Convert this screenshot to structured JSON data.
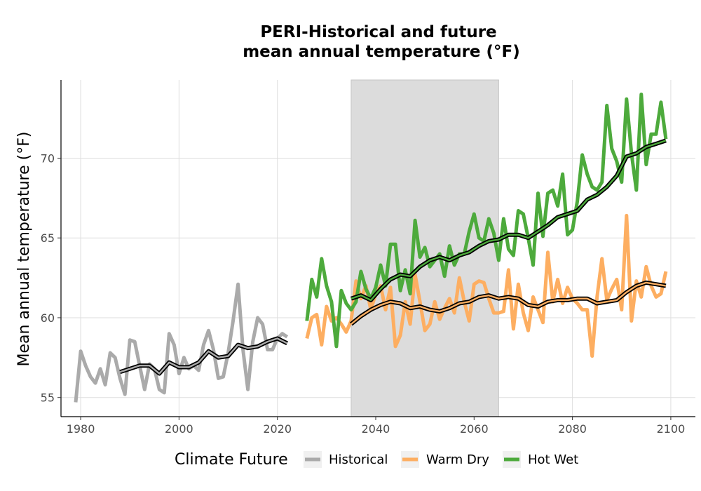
{
  "chart_data": {
    "type": "line",
    "title_lines": [
      "PERI-Historical and future",
      "mean annual temperature (°F)"
    ],
    "xlabel": "",
    "ylabel": "Mean annual temperature (°F)",
    "xlim": [
      1976,
      2105
    ],
    "ylim": [
      53.8,
      74.9
    ],
    "xticks": [
      1980,
      2000,
      2020,
      2040,
      2060,
      2080,
      2100
    ],
    "yticks": [
      55,
      60,
      65,
      70
    ],
    "grid": true,
    "shaded_period": [
      2035,
      2065
    ],
    "legend": {
      "title": "Climate Future",
      "position": "bottom",
      "entries": [
        "Historical",
        "Warm Dry",
        "Hot Wet"
      ]
    },
    "series": [
      {
        "name": "Historical",
        "color": "#aaaaaa",
        "x": [
          1979,
          1980,
          1981,
          1982,
          1983,
          1984,
          1985,
          1986,
          1987,
          1988,
          1989,
          1990,
          1991,
          1992,
          1993,
          1994,
          1995,
          1996,
          1997,
          1998,
          1999,
          2000,
          2001,
          2002,
          2003,
          2004,
          2005,
          2006,
          2007,
          2008,
          2009,
          2010,
          2011,
          2012,
          2013,
          2014,
          2015,
          2016,
          2017,
          2018,
          2019,
          2020,
          2021,
          2022
        ],
        "values": [
          54.7,
          57.9,
          57.0,
          56.3,
          55.9,
          56.8,
          55.8,
          57.8,
          57.5,
          56.2,
          55.2,
          58.6,
          58.5,
          57.0,
          55.5,
          57.1,
          56.8,
          55.5,
          55.3,
          59.0,
          58.3,
          56.5,
          57.5,
          56.8,
          57.0,
          56.7,
          58.3,
          59.2,
          58.0,
          56.2,
          56.3,
          57.8,
          59.8,
          62.1,
          58.0,
          55.5,
          58.5,
          60.0,
          59.6,
          58.0,
          58.0,
          58.7,
          59.0,
          58.8
        ]
      },
      {
        "name": "Warm Dry",
        "color": "#fdae61",
        "x": [
          2026,
          2027,
          2028,
          2029,
          2030,
          2031,
          2032,
          2033,
          2034,
          2035,
          2036,
          2037,
          2038,
          2039,
          2040,
          2041,
          2042,
          2043,
          2044,
          2045,
          2046,
          2047,
          2048,
          2049,
          2050,
          2051,
          2052,
          2053,
          2054,
          2055,
          2056,
          2057,
          2058,
          2059,
          2060,
          2061,
          2062,
          2063,
          2064,
          2065,
          2066,
          2067,
          2068,
          2069,
          2070,
          2071,
          2072,
          2073,
          2074,
          2075,
          2076,
          2077,
          2078,
          2079,
          2080,
          2081,
          2082,
          2083,
          2084,
          2085,
          2086,
          2087,
          2088,
          2089,
          2090,
          2091,
          2092,
          2093,
          2094,
          2095,
          2096,
          2097,
          2098,
          2099
        ],
        "values": [
          58.7,
          60.0,
          60.2,
          58.3,
          60.7,
          59.8,
          60.0,
          59.6,
          59.1,
          59.8,
          62.3,
          61.2,
          62.0,
          60.5,
          61.5,
          62.0,
          60.5,
          61.9,
          58.2,
          58.9,
          61.0,
          59.6,
          62.7,
          61.0,
          59.2,
          59.6,
          61.0,
          59.9,
          60.6,
          61.2,
          60.3,
          62.5,
          61.0,
          59.8,
          62.1,
          62.3,
          62.2,
          61.2,
          60.3,
          60.3,
          60.4,
          63.0,
          59.3,
          62.1,
          60.3,
          59.2,
          61.3,
          60.5,
          59.7,
          64.1,
          61.0,
          62.4,
          60.9,
          61.9,
          61.2,
          60.9,
          60.5,
          60.5,
          57.6,
          61.3,
          63.7,
          61.1,
          61.8,
          62.4,
          60.5,
          66.4,
          59.8,
          62.3,
          61.3,
          63.2,
          62.0,
          61.3,
          61.5,
          62.9
        ]
      },
      {
        "name": "Hot Wet",
        "color": "#4daa3c",
        "x": [
          2026,
          2027,
          2028,
          2029,
          2030,
          2031,
          2032,
          2033,
          2034,
          2035,
          2036,
          2037,
          2038,
          2039,
          2040,
          2041,
          2042,
          2043,
          2044,
          2045,
          2046,
          2047,
          2048,
          2049,
          2050,
          2051,
          2052,
          2053,
          2054,
          2055,
          2056,
          2057,
          2058,
          2059,
          2060,
          2061,
          2062,
          2063,
          2064,
          2065,
          2066,
          2067,
          2068,
          2069,
          2070,
          2071,
          2072,
          2073,
          2074,
          2075,
          2076,
          2077,
          2078,
          2079,
          2080,
          2081,
          2082,
          2083,
          2084,
          2085,
          2086,
          2087,
          2088,
          2089,
          2090,
          2091,
          2092,
          2093,
          2094,
          2095,
          2096,
          2097,
          2098,
          2099
        ],
        "values": [
          59.8,
          62.4,
          61.3,
          63.7,
          62.0,
          61.0,
          58.2,
          61.7,
          60.9,
          60.5,
          61.0,
          62.9,
          61.8,
          61.2,
          61.9,
          63.3,
          62.0,
          64.6,
          64.6,
          61.7,
          63.0,
          61.5,
          66.1,
          63.8,
          64.4,
          63.2,
          63.6,
          64.0,
          62.6,
          64.5,
          63.3,
          64.0,
          64.0,
          65.4,
          66.5,
          65.0,
          64.8,
          66.2,
          65.3,
          63.6,
          66.2,
          64.3,
          63.9,
          66.7,
          66.5,
          65.0,
          63.3,
          67.8,
          65.1,
          67.8,
          68.0,
          67.0,
          69.0,
          65.2,
          65.5,
          67.3,
          70.2,
          69.0,
          68.2,
          68.0,
          68.5,
          73.3,
          70.6,
          69.8,
          68.5,
          73.7,
          70.3,
          68.0,
          74.0,
          69.6,
          71.5,
          71.5,
          73.5,
          71.2
        ]
      }
    ],
    "smoothed": [
      {
        "name": "Historical",
        "x": [
          1988,
          1990,
          1992,
          1994,
          1996,
          1998,
          2000,
          2002,
          2004,
          2006,
          2008,
          2010,
          2012,
          2014,
          2016,
          2018,
          2020,
          2022
        ],
        "values": [
          56.6,
          56.8,
          57.0,
          57.0,
          56.5,
          57.2,
          56.9,
          56.9,
          57.2,
          57.9,
          57.5,
          57.6,
          58.3,
          58.1,
          58.2,
          58.5,
          58.7,
          58.4
        ]
      },
      {
        "name": "Warm Dry",
        "x": [
          2035,
          2037,
          2039,
          2041,
          2043,
          2045,
          2047,
          2049,
          2051,
          2053,
          2055,
          2057,
          2059,
          2061,
          2063,
          2065,
          2067,
          2069,
          2071,
          2073,
          2075,
          2077,
          2079,
          2081,
          2083,
          2085,
          2087,
          2089,
          2091,
          2093,
          2095,
          2097,
          2099
        ],
        "values": [
          59.6,
          60.1,
          60.5,
          60.8,
          61.0,
          60.9,
          60.6,
          60.7,
          60.5,
          60.4,
          60.6,
          60.9,
          61.0,
          61.3,
          61.4,
          61.2,
          61.3,
          61.2,
          60.8,
          60.7,
          61.0,
          61.1,
          61.1,
          61.2,
          61.2,
          60.9,
          61.0,
          61.1,
          61.6,
          62.0,
          62.2,
          62.1,
          62.0
        ]
      },
      {
        "name": "Hot Wet",
        "x": [
          2035,
          2037,
          2039,
          2041,
          2043,
          2045,
          2047,
          2049,
          2051,
          2053,
          2055,
          2057,
          2059,
          2061,
          2063,
          2065,
          2067,
          2069,
          2071,
          2073,
          2075,
          2077,
          2079,
          2081,
          2083,
          2085,
          2087,
          2089,
          2091,
          2093,
          2095,
          2097,
          2099
        ],
        "values": [
          61.2,
          61.4,
          61.1,
          61.8,
          62.4,
          62.7,
          62.6,
          63.2,
          63.6,
          63.8,
          63.6,
          63.9,
          64.1,
          64.5,
          64.8,
          64.9,
          65.2,
          65.2,
          65.0,
          65.4,
          65.8,
          66.3,
          66.5,
          66.7,
          67.4,
          67.7,
          68.2,
          68.9,
          70.1,
          70.3,
          70.7,
          70.9,
          71.1
        ]
      }
    ]
  }
}
